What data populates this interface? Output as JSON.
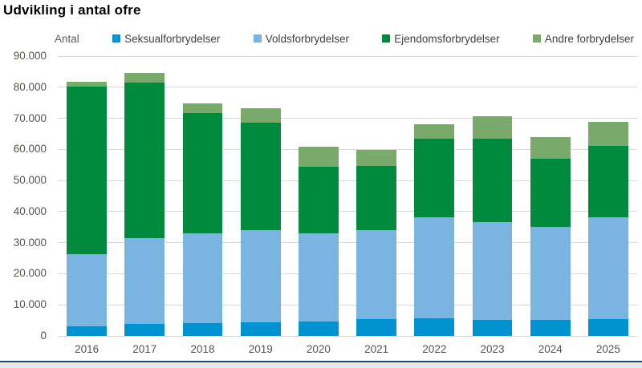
{
  "title": "Udvikling i antal ofre",
  "axis_unit_label": "Antal",
  "colors": {
    "seksualforbrydelser": "#0092d1",
    "voldsforbrydelser": "#7ab5e2",
    "ejendomsforbrydelser": "#008a3d",
    "andre_forbrydelser": "#7aaa6b",
    "gridline": "#d9d9d1",
    "tick_text": "#55544c",
    "legend_text": "#404040",
    "footer_line": "#1f4e79",
    "footer_strip": "#e9e9e9",
    "title_text": "#000000"
  },
  "chart_data": {
    "type": "bar",
    "stacked": true,
    "title": "Udvikling i antal ofre",
    "ylabel": "Antal",
    "xlabel": "",
    "grid": true,
    "legend_position": "top",
    "ylim": [
      0,
      90000
    ],
    "ytick_labels": [
      "90.000",
      "80.000",
      "70.000",
      "60.000",
      "50.000",
      "40.000",
      "30.000",
      "20.000",
      "10.000",
      "0"
    ],
    "categories": [
      "2016",
      "2017",
      "2018",
      "2019",
      "2020",
      "2021",
      "2022",
      "2023",
      "2024",
      "2025"
    ],
    "series": [
      {
        "name": "Seksualforbrydelser",
        "color": "#0092d1",
        "values": [
          3000,
          3800,
          4100,
          4400,
          4600,
          5500,
          5800,
          5200,
          5100,
          5500
        ]
      },
      {
        "name": "Voldsforbrydelser",
        "color": "#7ab5e2",
        "values": [
          23400,
          27600,
          29000,
          29600,
          28400,
          28600,
          32400,
          31300,
          29900,
          32800
        ]
      },
      {
        "name": "Ejendomsforbrydelser",
        "color": "#008a3d",
        "values": [
          53900,
          50000,
          38600,
          34700,
          21500,
          20700,
          25300,
          26900,
          22000,
          22700
        ]
      },
      {
        "name": "Andre forbrydelser",
        "color": "#7aaa6b",
        "values": [
          1500,
          3200,
          3000,
          4600,
          6300,
          5100,
          4600,
          7400,
          6900,
          7800
        ]
      }
    ],
    "totals": [
      81800,
      84600,
      74700,
      73300,
      60800,
      59900,
      68100,
      70800,
      63900,
      68800
    ]
  }
}
